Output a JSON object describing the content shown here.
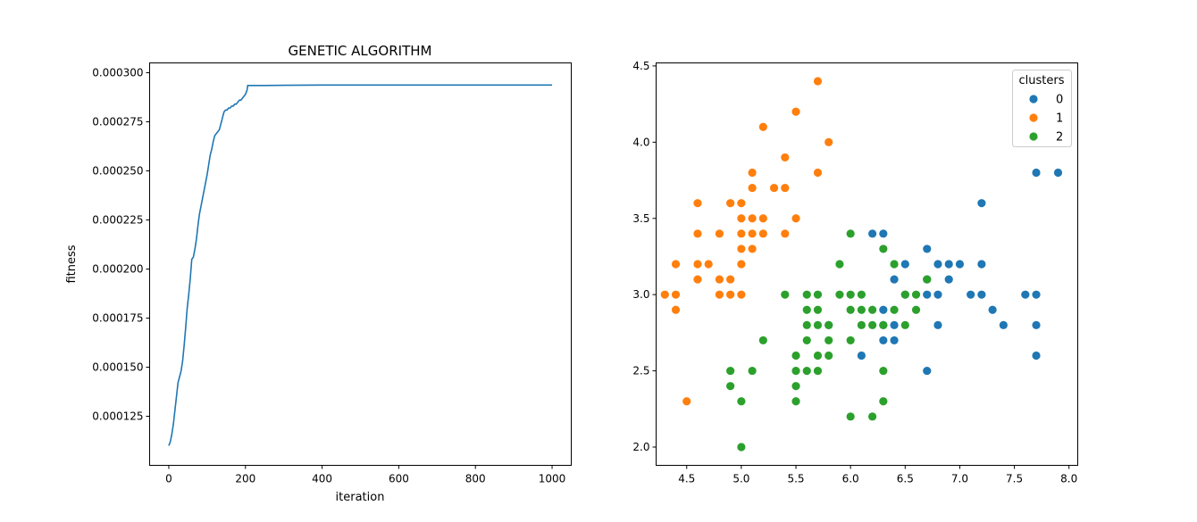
{
  "chart_data": [
    {
      "type": "line",
      "title": "GENETIC ALGORITHM",
      "xlabel": "iteration",
      "ylabel": "fitness",
      "xlim": [
        -50,
        1050
      ],
      "ylim": [
        0.0001,
        0.000305
      ],
      "xticks": [
        0,
        200,
        400,
        600,
        800,
        1000
      ],
      "xtick_labels": [
        "0",
        "200",
        "400",
        "600",
        "800",
        "1000"
      ],
      "yticks": [
        0.000125,
        0.00015,
        0.000175,
        0.0002,
        0.000225,
        0.00025,
        0.000275,
        0.0003
      ],
      "ytick_labels": [
        "0.000125",
        "0.000150",
        "0.000175",
        "0.000200",
        "0.000225",
        "0.000250",
        "0.000275",
        "0.000300"
      ],
      "grid": false,
      "color": "#1f77b4",
      "series": [
        {
          "x": [
            0,
            4,
            8,
            12,
            16,
            20,
            24,
            28,
            32,
            36,
            40,
            44,
            48,
            52,
            56,
            60,
            64,
            68,
            72,
            76,
            80,
            84,
            88,
            92,
            96,
            100,
            104,
            108,
            112,
            116,
            120,
            124,
            128,
            132,
            136,
            140,
            144,
            148,
            152,
            156,
            160,
            164,
            168,
            172,
            176,
            180,
            184,
            188,
            192,
            196,
            200,
            204,
            206,
            210,
            250,
            300,
            400,
            500,
            600,
            700,
            800,
            900,
            1000
          ],
          "y": [
            0.00011,
            0.000112,
            0.000116,
            0.000121,
            0.000128,
            0.000135,
            0.000142,
            0.000145,
            0.000148,
            0.000153,
            0.000161,
            0.00017,
            0.00018,
            0.000187,
            0.000195,
            0.000205,
            0.000206,
            0.00021,
            0.000215,
            0.000222,
            0.000228,
            0.000232,
            0.000236,
            0.00024,
            0.000244,
            0.000248,
            0.000253,
            0.000258,
            0.000261,
            0.000265,
            0.000268,
            0.000269,
            0.00027,
            0.000271,
            0.000274,
            0.000277,
            0.00028,
            0.000281,
            0.000281,
            0.000282,
            0.000282,
            0.000283,
            0.000283,
            0.000284,
            0.000284,
            0.000285,
            0.000286,
            0.000286,
            0.000287,
            0.000288,
            0.000289,
            0.000291,
            0.0002935,
            0.0002935,
            0.0002935,
            0.0002936,
            0.0002937,
            0.0002937,
            0.0002937,
            0.0002937,
            0.0002937,
            0.0002937,
            0.0002937
          ]
        }
      ]
    },
    {
      "type": "scatter",
      "xlim": [
        4.22,
        8.08
      ],
      "ylim": [
        1.88,
        4.52
      ],
      "xticks": [
        4.5,
        5.0,
        5.5,
        6.0,
        6.5,
        7.0,
        7.5,
        8.0
      ],
      "xtick_labels": [
        "4.5",
        "5.0",
        "5.5",
        "6.0",
        "6.5",
        "7.0",
        "7.5",
        "8.0"
      ],
      "yticks": [
        2.0,
        2.5,
        3.0,
        3.5,
        4.0,
        4.5
      ],
      "ytick_labels": [
        "2.0",
        "2.5",
        "3.0",
        "3.5",
        "4.0",
        "4.5"
      ],
      "grid": false,
      "legend": {
        "title": "clusters",
        "placement": "top-right"
      },
      "series": [
        {
          "name": "0",
          "color": "#1f77b4",
          "points": [
            [
              7.9,
              3.8
            ],
            [
              7.7,
              3.8
            ],
            [
              7.7,
              3.0
            ],
            [
              7.7,
              2.8
            ],
            [
              7.7,
              2.6
            ],
            [
              7.6,
              3.0
            ],
            [
              7.4,
              2.8
            ],
            [
              7.3,
              2.9
            ],
            [
              7.2,
              3.6
            ],
            [
              7.2,
              3.2
            ],
            [
              7.2,
              3.0
            ],
            [
              7.1,
              3.0
            ],
            [
              7.0,
              3.2
            ],
            [
              6.9,
              3.2
            ],
            [
              6.9,
              3.1
            ],
            [
              6.8,
              3.2
            ],
            [
              6.8,
              3.0
            ],
            [
              6.8,
              2.8
            ],
            [
              6.7,
              3.3
            ],
            [
              6.7,
              3.1
            ],
            [
              6.7,
              3.0
            ],
            [
              6.7,
              2.5
            ],
            [
              6.5,
              3.2
            ],
            [
              6.5,
              3.0
            ],
            [
              6.4,
              3.1
            ],
            [
              6.4,
              2.8
            ],
            [
              6.4,
              2.7
            ],
            [
              6.3,
              3.4
            ],
            [
              6.3,
              2.9
            ],
            [
              6.3,
              2.8
            ],
            [
              6.3,
              2.7
            ],
            [
              6.2,
              3.4
            ],
            [
              6.1,
              2.6
            ],
            [
              5.8,
              2.8
            ]
          ]
        },
        {
          "name": "1",
          "color": "#ff7f0e",
          "points": [
            [
              5.7,
              4.4
            ],
            [
              5.5,
              4.2
            ],
            [
              5.2,
              4.1
            ],
            [
              5.8,
              4.0
            ],
            [
              5.4,
              3.9
            ],
            [
              5.7,
              3.8
            ],
            [
              5.1,
              3.8
            ],
            [
              5.4,
              3.7
            ],
            [
              5.3,
              3.7
            ],
            [
              5.1,
              3.7
            ],
            [
              4.6,
              3.6
            ],
            [
              4.9,
              3.6
            ],
            [
              5.0,
              3.6
            ],
            [
              5.5,
              3.5
            ],
            [
              5.2,
              3.5
            ],
            [
              5.1,
              3.5
            ],
            [
              5.0,
              3.5
            ],
            [
              4.6,
              3.4
            ],
            [
              4.8,
              3.4
            ],
            [
              5.0,
              3.4
            ],
            [
              5.1,
              3.4
            ],
            [
              5.2,
              3.4
            ],
            [
              5.4,
              3.4
            ],
            [
              5.0,
              3.3
            ],
            [
              5.1,
              3.3
            ],
            [
              4.4,
              3.2
            ],
            [
              4.6,
              3.2
            ],
            [
              4.7,
              3.2
            ],
            [
              5.0,
              3.2
            ],
            [
              4.6,
              3.1
            ],
            [
              4.8,
              3.1
            ],
            [
              4.9,
              3.1
            ],
            [
              4.3,
              3.0
            ],
            [
              4.4,
              3.0
            ],
            [
              4.8,
              3.0
            ],
            [
              4.9,
              3.0
            ],
            [
              5.0,
              3.0
            ],
            [
              4.4,
              2.9
            ],
            [
              4.5,
              2.3
            ]
          ]
        },
        {
          "name": "2",
          "color": "#2ca02c",
          "points": [
            [
              6.0,
              3.4
            ],
            [
              6.3,
              3.3
            ],
            [
              5.9,
              3.2
            ],
            [
              6.4,
              3.2
            ],
            [
              6.7,
              3.1
            ],
            [
              5.4,
              3.0
            ],
            [
              5.6,
              3.0
            ],
            [
              5.7,
              3.0
            ],
            [
              5.9,
              3.0
            ],
            [
              6.0,
              3.0
            ],
            [
              6.1,
              3.0
            ],
            [
              6.5,
              3.0
            ],
            [
              6.6,
              3.0
            ],
            [
              5.6,
              2.9
            ],
            [
              5.7,
              2.9
            ],
            [
              6.0,
              2.9
            ],
            [
              6.1,
              2.9
            ],
            [
              6.2,
              2.9
            ],
            [
              6.4,
              2.9
            ],
            [
              6.6,
              2.9
            ],
            [
              5.6,
              2.8
            ],
            [
              5.7,
              2.8
            ],
            [
              5.8,
              2.8
            ],
            [
              6.1,
              2.8
            ],
            [
              6.2,
              2.8
            ],
            [
              6.3,
              2.8
            ],
            [
              6.5,
              2.8
            ],
            [
              5.2,
              2.7
            ],
            [
              5.6,
              2.7
            ],
            [
              5.8,
              2.7
            ],
            [
              6.0,
              2.7
            ],
            [
              5.5,
              2.6
            ],
            [
              5.7,
              2.6
            ],
            [
              5.8,
              2.6
            ],
            [
              4.9,
              2.5
            ],
            [
              5.1,
              2.5
            ],
            [
              5.5,
              2.5
            ],
            [
              5.6,
              2.5
            ],
            [
              5.7,
              2.5
            ],
            [
              6.3,
              2.5
            ],
            [
              4.9,
              2.4
            ],
            [
              5.5,
              2.4
            ],
            [
              5.0,
              2.3
            ],
            [
              5.5,
              2.3
            ],
            [
              6.3,
              2.3
            ],
            [
              6.0,
              2.2
            ],
            [
              6.2,
              2.2
            ],
            [
              5.0,
              2.0
            ]
          ]
        }
      ]
    }
  ]
}
